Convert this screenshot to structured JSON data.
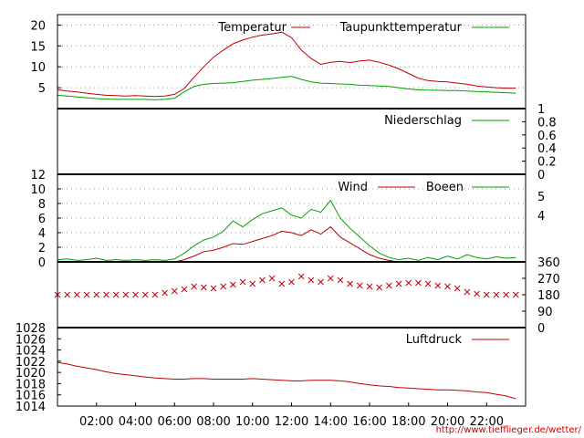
{
  "source_credit": "http://www.tiefflieger.de/wetter/",
  "colors": {
    "red": "#c00000",
    "green": "#00a000",
    "wind_dir": "#c00000"
  },
  "chart_data": [
    {
      "type": "line",
      "panel": "temperature",
      "x_hours": [
        0,
        0.5,
        1,
        1.5,
        2,
        2.5,
        3,
        3.5,
        4,
        4.5,
        5,
        5.5,
        6,
        6.5,
        7,
        7.5,
        8,
        8.5,
        9,
        9.5,
        10,
        10.5,
        11,
        11.5,
        12,
        12.5,
        13,
        13.5,
        14,
        14.5,
        15,
        15.5,
        16,
        16.5,
        17,
        17.5,
        18,
        18.5,
        19,
        19.5,
        20,
        20.5,
        21,
        21.5,
        22,
        22.5,
        23,
        23.5
      ],
      "series": [
        {
          "name": "Temperatur",
          "color": "#c00000",
          "values": [
            4.5,
            4.2,
            4.0,
            3.7,
            3.4,
            3.2,
            3.1,
            3.0,
            3.1,
            3.0,
            2.9,
            3.0,
            3.4,
            4.8,
            7.5,
            10.0,
            12.3,
            14.0,
            15.5,
            16.4,
            17.1,
            17.6,
            17.9,
            18.3,
            17.0,
            14.0,
            12.0,
            10.6,
            11.1,
            11.3,
            11.0,
            11.4,
            11.6,
            11.1,
            10.4,
            9.5,
            8.4,
            7.3,
            6.7,
            6.5,
            6.4,
            6.1,
            5.8,
            5.4,
            5.2,
            5.0,
            4.9,
            4.9
          ]
        },
        {
          "name": "Taupunkttemperatur",
          "color": "#00a000",
          "values": [
            3.2,
            3.0,
            2.8,
            2.6,
            2.4,
            2.3,
            2.2,
            2.2,
            2.2,
            2.2,
            2.1,
            2.2,
            2.5,
            4.0,
            5.3,
            5.8,
            6.0,
            6.1,
            6.2,
            6.5,
            6.8,
            7.0,
            7.2,
            7.5,
            7.7,
            7.0,
            6.4,
            6.1,
            6.0,
            5.9,
            5.8,
            5.6,
            5.5,
            5.4,
            5.3,
            5.0,
            4.7,
            4.5,
            4.4,
            4.4,
            4.3,
            4.3,
            4.2,
            4.1,
            4.0,
            3.9,
            3.8,
            3.7
          ]
        }
      ],
      "y_ticks": [
        5,
        10,
        15,
        20
      ],
      "ylim": [
        0,
        22.5
      ]
    },
    {
      "type": "line",
      "panel": "precipitation",
      "series": [
        {
          "name": "Niederschlag",
          "color": "#00a000",
          "values": [
            0,
            0,
            0,
            0,
            0,
            0,
            0,
            0,
            0,
            0,
            0,
            0,
            0,
            0,
            0,
            0,
            0,
            0,
            0,
            0,
            0,
            0,
            0,
            0,
            0,
            0,
            0,
            0,
            0,
            0,
            0,
            0,
            0,
            0,
            0,
            0,
            0,
            0,
            0,
            0,
            0,
            0,
            0,
            0,
            0,
            0,
            0,
            0
          ]
        }
      ],
      "y_ticks": [
        0,
        0.2,
        0.4,
        0.6,
        0.8,
        1
      ],
      "ylim": [
        0,
        1
      ]
    },
    {
      "type": "line",
      "panel": "wind",
      "x_hours": [
        0,
        0.5,
        1,
        1.5,
        2,
        2.5,
        3,
        3.5,
        4,
        4.5,
        5,
        5.5,
        6,
        6.5,
        7,
        7.5,
        8,
        8.5,
        9,
        9.5,
        10,
        10.5,
        11,
        11.5,
        12,
        12.5,
        13,
        13.5,
        14,
        14.5,
        15,
        15.5,
        16,
        16.5,
        17,
        17.5,
        18,
        18.5,
        19,
        19.5,
        20,
        20.5,
        21,
        21.5,
        22,
        22.5,
        23,
        23.5
      ],
      "series": [
        {
          "name": "Wind",
          "color": "#c00000",
          "values": [
            0,
            0,
            0,
            0,
            0,
            0,
            0,
            0,
            0,
            0,
            0,
            0,
            0,
            0.3,
            0.8,
            1.4,
            1.6,
            2.0,
            2.5,
            2.4,
            2.8,
            3.2,
            3.6,
            4.2,
            4.0,
            3.6,
            4.4,
            3.8,
            4.8,
            3.4,
            2.6,
            1.8,
            1.0,
            0.5,
            0.2,
            0,
            0,
            0,
            0,
            0,
            0,
            0,
            0,
            0,
            0,
            0,
            0,
            0
          ]
        },
        {
          "name": "Boeen",
          "color": "#00a000",
          "values": [
            0.3,
            0.4,
            0.2,
            0.3,
            0.5,
            0.2,
            0.3,
            0.2,
            0.3,
            0.2,
            0.3,
            0.2,
            0.4,
            1.2,
            2.2,
            3.0,
            3.4,
            4.2,
            5.6,
            4.8,
            5.8,
            6.6,
            7.0,
            7.4,
            6.4,
            6.0,
            7.2,
            6.8,
            8.4,
            6.0,
            4.6,
            3.4,
            2.2,
            1.2,
            0.6,
            0.3,
            0.5,
            0.2,
            0.6,
            0.3,
            0.8,
            0.4,
            1.0,
            0.6,
            0.4,
            0.7,
            0.5,
            0.6
          ]
        }
      ],
      "y_ticks": [
        0,
        2,
        4,
        6,
        8,
        10,
        12
      ],
      "right_ticks": [
        "4",
        "5"
      ],
      "ylim": [
        0,
        12
      ]
    },
    {
      "type": "scatter",
      "panel": "wind_direction",
      "x_hours": [
        0,
        0.5,
        1,
        1.5,
        2,
        2.5,
        3,
        3.5,
        4,
        4.5,
        5,
        5.5,
        6,
        6.5,
        7,
        7.5,
        8,
        8.5,
        9,
        9.5,
        10,
        10.5,
        11,
        11.5,
        12,
        12.5,
        13,
        13.5,
        14,
        14.5,
        15,
        15.5,
        16,
        16.5,
        17,
        17.5,
        18,
        18.5,
        19,
        19.5,
        20,
        20.5,
        21,
        21.5,
        22,
        22.5,
        23,
        23.5
      ],
      "values": [
        180,
        180,
        180,
        180,
        180,
        180,
        180,
        180,
        180,
        180,
        180,
        190,
        200,
        210,
        225,
        220,
        215,
        225,
        235,
        250,
        240,
        260,
        270,
        240,
        250,
        280,
        260,
        250,
        270,
        260,
        240,
        230,
        225,
        220,
        230,
        240,
        245,
        245,
        240,
        230,
        225,
        215,
        195,
        185,
        180,
        180,
        180,
        180
      ],
      "y_ticks": [
        0,
        90,
        180,
        270,
        360
      ],
      "ylim": [
        0,
        360
      ]
    },
    {
      "type": "line",
      "panel": "pressure",
      "x_hours": [
        0,
        0.5,
        1,
        1.5,
        2,
        2.5,
        3,
        3.5,
        4,
        4.5,
        5,
        5.5,
        6,
        6.5,
        7,
        7.5,
        8,
        8.5,
        9,
        9.5,
        10,
        10.5,
        11,
        11.5,
        12,
        12.5,
        13,
        13.5,
        14,
        14.5,
        15,
        15.5,
        16,
        16.5,
        17,
        17.5,
        18,
        18.5,
        19,
        19.5,
        20,
        20.5,
        21,
        21.5,
        22,
        22.5,
        23,
        23.5
      ],
      "series": [
        {
          "name": "Luftdruck",
          "color": "#c00000",
          "values": [
            1021.8,
            1021.5,
            1021.1,
            1020.8,
            1020.5,
            1020.1,
            1019.8,
            1019.6,
            1019.4,
            1019.2,
            1019.0,
            1018.9,
            1018.8,
            1018.8,
            1018.9,
            1018.9,
            1018.8,
            1018.8,
            1018.8,
            1018.8,
            1018.9,
            1018.8,
            1018.7,
            1018.6,
            1018.5,
            1018.5,
            1018.6,
            1018.6,
            1018.6,
            1018.5,
            1018.3,
            1018.0,
            1017.8,
            1017.6,
            1017.5,
            1017.3,
            1017.2,
            1017.1,
            1017.0,
            1016.9,
            1016.9,
            1016.8,
            1016.7,
            1016.5,
            1016.4,
            1016.1,
            1015.8,
            1015.3
          ]
        }
      ],
      "y_ticks": [
        1014,
        1016,
        1018,
        1020,
        1022,
        1024,
        1026,
        1028
      ],
      "ylim": [
        1014,
        1028
      ]
    }
  ],
  "x_axis": {
    "range_hours": [
      0,
      24
    ],
    "tick_hours": [
      2,
      4,
      6,
      8,
      10,
      12,
      14,
      16,
      18,
      20,
      22
    ],
    "tick_labels": [
      "02:00",
      "04:00",
      "06:00",
      "08:00",
      "10:00",
      "12:00",
      "14:00",
      "16:00",
      "18:00",
      "20:00",
      "22:00"
    ]
  }
}
